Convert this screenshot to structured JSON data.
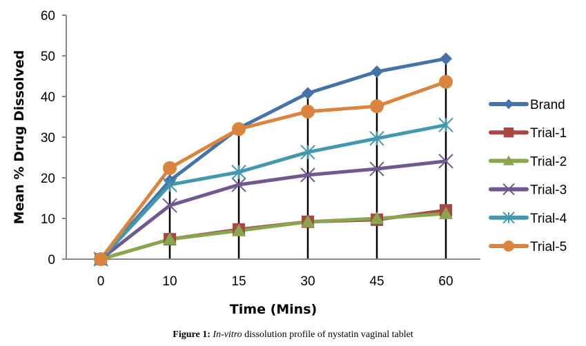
{
  "chart_data": {
    "type": "line",
    "title": "",
    "xlabel": "Time (Mins)",
    "ylabel": "Mean % Drug Dissolved",
    "categories": [
      "0",
      "10",
      "15",
      "30",
      "45",
      "60"
    ],
    "ylim": [
      0,
      60
    ],
    "yticks": [
      0,
      10,
      20,
      30,
      40,
      50,
      60
    ],
    "grid": false,
    "legend_position": "right",
    "drop_lines": true,
    "series": [
      {
        "name": "Brand",
        "marker": "diamond",
        "color": "#4573A7",
        "values": [
          0,
          19.3,
          32.2,
          40.8,
          46.1,
          49.3
        ]
      },
      {
        "name": "Trial-1",
        "marker": "square",
        "color": "#AA4643",
        "values": [
          0,
          4.9,
          7.3,
          9.2,
          9.7,
          12.0
        ]
      },
      {
        "name": "Trial-2",
        "marker": "triangle",
        "color": "#89A54E",
        "values": [
          0,
          4.9,
          7.0,
          9.2,
          10.0,
          11.2
        ]
      },
      {
        "name": "Trial-3",
        "marker": "x",
        "color": "#71588F",
        "values": [
          0,
          13.2,
          18.3,
          20.7,
          22.2,
          24.1
        ]
      },
      {
        "name": "Trial-4",
        "marker": "star",
        "color": "#4198AF",
        "values": [
          0,
          18.3,
          21.4,
          26.3,
          29.7,
          33.0
        ]
      },
      {
        "name": "Trial-5",
        "marker": "circle",
        "color": "#DB843D",
        "values": [
          0,
          22.4,
          32.0,
          36.3,
          37.6,
          43.6
        ]
      }
    ]
  },
  "caption": {
    "label": "Figure 1:",
    "italic": "In-vitro",
    "text": " dissolution profile of nystatin vaginal tablet"
  }
}
